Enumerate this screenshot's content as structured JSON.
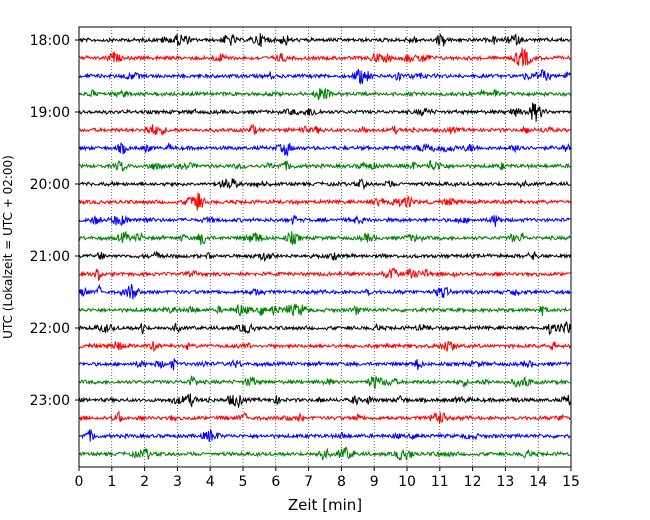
{
  "chart_data": {
    "type": "line",
    "xlabel": "Zeit  [min]",
    "ylabel": "UTC (Lokalzeit = UTC + 02:00)",
    "xlim": [
      0,
      15
    ],
    "x_ticks": [
      "0",
      "1",
      "2",
      "3",
      "4",
      "5",
      "6",
      "7",
      "8",
      "9",
      "10",
      "11",
      "12",
      "13",
      "14",
      "15"
    ],
    "y_tick_labels": [
      "18:00",
      "19:00",
      "20:00",
      "21:00",
      "22:00",
      "23:00"
    ],
    "grid": "vertical dotted lines at each minute",
    "trace_interval_minutes": 15,
    "start_time_utc": "18:00",
    "trace_count": 24,
    "trace_colors": [
      "#000000",
      "#ff0000",
      "#0000ff",
      "#008000"
    ],
    "series": [
      {
        "label": "18:00"
      },
      {
        "label": "18:15"
      },
      {
        "label": "18:30"
      },
      {
        "label": "18:45"
      },
      {
        "label": "19:00"
      },
      {
        "label": "19:15"
      },
      {
        "label": "19:30"
      },
      {
        "label": "19:45"
      },
      {
        "label": "20:00"
      },
      {
        "label": "20:15"
      },
      {
        "label": "20:30"
      },
      {
        "label": "20:45"
      },
      {
        "label": "21:00"
      },
      {
        "label": "21:15"
      },
      {
        "label": "21:30"
      },
      {
        "label": "21:45"
      },
      {
        "label": "22:00"
      },
      {
        "label": "22:15"
      },
      {
        "label": "22:30"
      },
      {
        "label": "22:45"
      },
      {
        "label": "23:00"
      },
      {
        "label": "23:15"
      },
      {
        "label": "23:30"
      },
      {
        "label": "23:45"
      }
    ]
  }
}
